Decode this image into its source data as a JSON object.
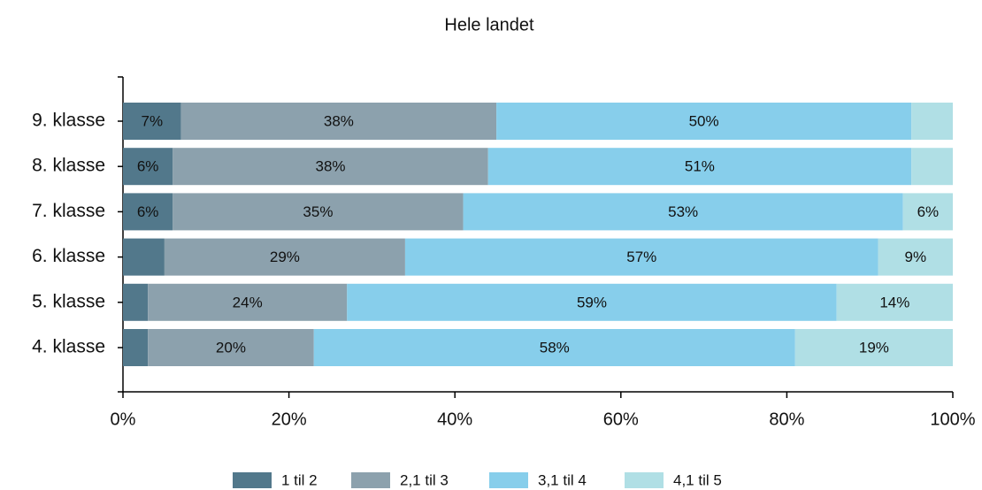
{
  "chart_data": {
    "type": "stacked_barh",
    "title": "Hele landet",
    "categories": [
      "9. klasse",
      "8. klasse",
      "7. klasse",
      "6. klasse",
      "5. klasse",
      "4. klasse"
    ],
    "series": [
      {
        "name": "1 til 2",
        "color": "#52788b",
        "values": [
          7,
          6,
          6,
          5,
          3,
          3
        ],
        "value_labels": [
          "7%",
          "6%",
          "6%",
          null,
          null,
          null
        ]
      },
      {
        "name": "2,1 til 3",
        "color": "#8ca1ad",
        "values": [
          38,
          38,
          35,
          29,
          24,
          20
        ],
        "value_labels": [
          "38%",
          "38%",
          "35%",
          "29%",
          "24%",
          "20%"
        ]
      },
      {
        "name": "3,1 til 4",
        "color": "#87ceeb",
        "values": [
          50,
          51,
          53,
          57,
          59,
          58
        ],
        "value_labels": [
          "50%",
          "51%",
          "53%",
          "57%",
          "59%",
          "58%"
        ]
      },
      {
        "name": "4,1 til 5",
        "color": "#b0dfe5",
        "values": [
          5,
          5,
          6,
          9,
          14,
          19
        ],
        "value_labels": [
          null,
          null,
          "6%",
          "9%",
          "14%",
          "19%"
        ]
      }
    ],
    "xlim": [
      0,
      100
    ],
    "xticks": [
      {
        "value": 0,
        "label": "0%"
      },
      {
        "value": 20,
        "label": "20%"
      },
      {
        "value": 40,
        "label": "40%"
      },
      {
        "value": 60,
        "label": "60%"
      },
      {
        "value": 80,
        "label": "80%"
      },
      {
        "value": 100,
        "label": "100%"
      }
    ]
  }
}
